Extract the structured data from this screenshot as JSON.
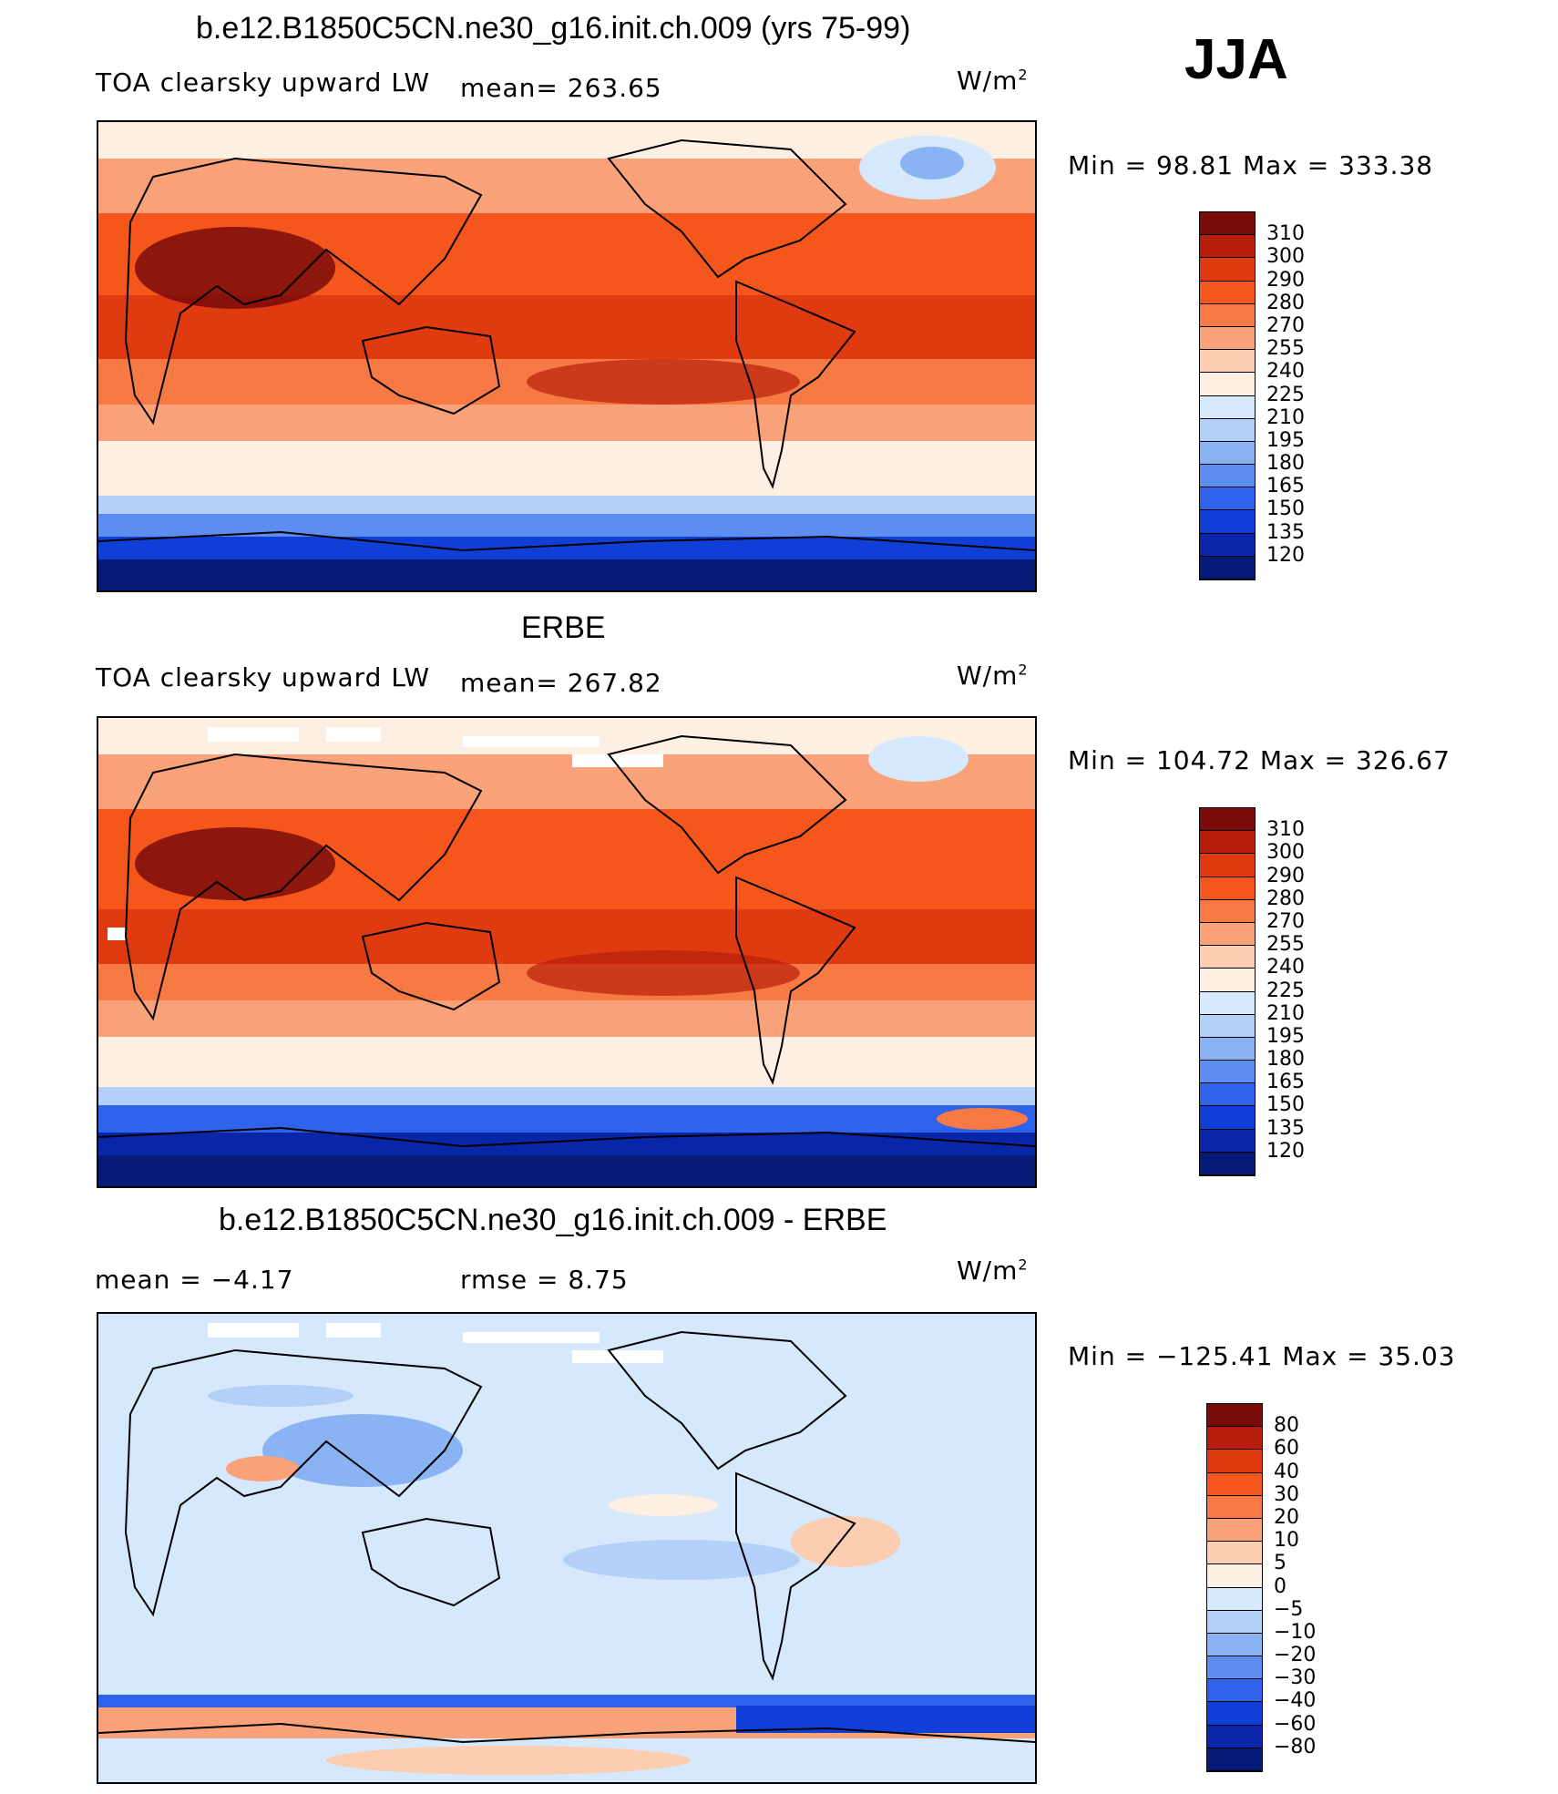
{
  "season": "JJA",
  "panels": [
    {
      "title": "b.e12.B1850C5CN.ne30_g16.init.ch.009 (yrs 75-99)",
      "left_label": "TOA clearsky upward LW",
      "mid_label": "mean=  263.65",
      "units": "W/m",
      "units_exp": "2",
      "minmax": "Min =   98.81  Max  =  333.38",
      "levels": [
        "310",
        "300",
        "290",
        "280",
        "270",
        "255",
        "240",
        "225",
        "210",
        "195",
        "180",
        "165",
        "150",
        "135",
        "120"
      ],
      "colors": [
        "#7a0a0a",
        "#b81f0a",
        "#e03b10",
        "#f5561c",
        "#f77a45",
        "#f9a27a",
        "#fccdb0",
        "#fdf0e2",
        "#d6e8fb",
        "#b3d0f8",
        "#8ab3f3",
        "#5b8ef0",
        "#2f63eb",
        "#0f3fd6",
        "#0a26a8",
        "#061a7a"
      ]
    },
    {
      "title": "ERBE",
      "left_label": "TOA clearsky upward LW",
      "mid_label": "mean=  267.82",
      "units": "W/m",
      "units_exp": "2",
      "minmax": "Min  =  104.72  Max  =  326.67",
      "levels": [
        "310",
        "300",
        "290",
        "280",
        "270",
        "255",
        "240",
        "225",
        "210",
        "195",
        "180",
        "165",
        "150",
        "135",
        "120"
      ],
      "colors": [
        "#7a0a0a",
        "#b81f0a",
        "#e03b10",
        "#f5561c",
        "#f77a45",
        "#f9a27a",
        "#fccdb0",
        "#fdf0e2",
        "#d6e8fb",
        "#b3d0f8",
        "#8ab3f3",
        "#5b8ef0",
        "#2f63eb",
        "#0f3fd6",
        "#0a26a8",
        "#061a7a"
      ]
    },
    {
      "title": "b.e12.B1850C5CN.ne30_g16.init.ch.009 - ERBE",
      "left_label": "mean  =    −4.17",
      "mid_label": "rmse  =     8.75",
      "units": "W/m",
      "units_exp": "2",
      "minmax": "Min  =  −125.41  Max  =    35.03",
      "levels": [
        "80",
        "60",
        "40",
        "30",
        "20",
        "10",
        "5",
        "0",
        "−5",
        "−10",
        "−20",
        "−30",
        "−40",
        "−60",
        "−80"
      ],
      "colors": [
        "#7a0a0a",
        "#b81f0a",
        "#e03b10",
        "#f5561c",
        "#f77a45",
        "#f9a27a",
        "#fccdb0",
        "#fdf0e2",
        "#d6e8fb",
        "#b3d0f8",
        "#8ab3f3",
        "#5b8ef0",
        "#2f63eb",
        "#0f3fd6",
        "#0a26a8",
        "#061a7a"
      ]
    }
  ]
}
